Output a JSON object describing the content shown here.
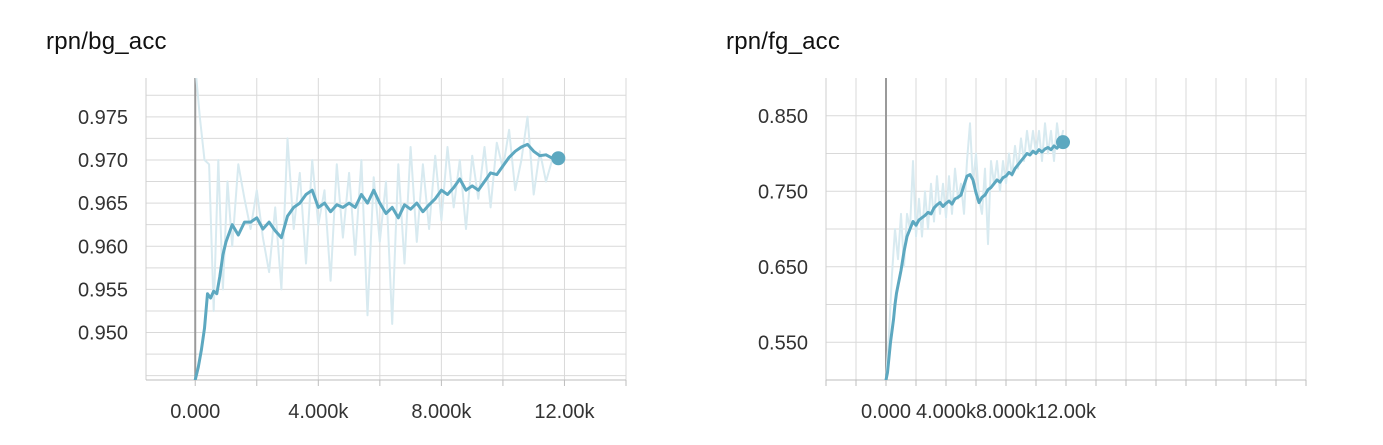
{
  "charts": [
    {
      "title": "rpn/bg_acc",
      "chart_data": {
        "type": "line",
        "title": "rpn/bg_acc",
        "xlabel": "",
        "ylabel": "",
        "xlim": [
          -1600,
          14000
        ],
        "ylim": [
          0.9445,
          0.9795
        ],
        "x_ticks": [
          0,
          4000,
          8000,
          12000
        ],
        "x_tick_labels": [
          "0.000",
          "4.000k",
          "8.000k",
          "12.00k"
        ],
        "y_ticks": [
          0.95,
          0.955,
          0.96,
          0.965,
          0.97,
          0.975
        ],
        "y_tick_labels": [
          "0.950",
          "0.955",
          "0.960",
          "0.965",
          "0.970",
          "0.975"
        ],
        "grid": true,
        "series": [
          {
            "role": "raw",
            "color": "#d8eaf0",
            "x": [
              0,
              150,
              300,
              450,
              600,
              750,
              900,
              1050,
              1200,
              1400,
              1600,
              1800,
              2000,
              2200,
              2400,
              2600,
              2800,
              3000,
              3200,
              3400,
              3600,
              3800,
              4000,
              4200,
              4400,
              4600,
              4800,
              5000,
              5200,
              5400,
              5600,
              5800,
              6000,
              6200,
              6400,
              6600,
              6800,
              7000,
              7200,
              7400,
              7600,
              7800,
              8000,
              8200,
              8400,
              8600,
              8800,
              9000,
              9200,
              9400,
              9600,
              9800,
              10000,
              10200,
              10400,
              10600,
              10800,
              11000,
              11200,
              11400,
              11600,
              11800
            ],
            "y": [
              0.981,
              0.975,
              0.97,
              0.9695,
              0.9525,
              0.97,
              0.955,
              0.9675,
              0.96,
              0.9695,
              0.9655,
              0.962,
              0.9665,
              0.961,
              0.957,
              0.9645,
              0.955,
              0.9725,
              0.962,
              0.9685,
              0.958,
              0.97,
              0.9625,
              0.9665,
              0.956,
              0.9695,
              0.961,
              0.9685,
              0.959,
              0.97,
              0.952,
              0.968,
              0.9605,
              0.9675,
              0.951,
              0.9695,
              0.958,
              0.9715,
              0.9605,
              0.9695,
              0.962,
              0.9705,
              0.963,
              0.9715,
              0.9645,
              0.97,
              0.962,
              0.9705,
              0.9655,
              0.9715,
              0.9645,
              0.972,
              0.969,
              0.9735,
              0.9665,
              0.97,
              0.975,
              0.966,
              0.971,
              0.9675,
              0.97,
              0.97
            ]
          },
          {
            "role": "smoothed",
            "color": "#5da8c0",
            "x": [
              0,
              100,
              200,
              300,
              400,
              500,
              600,
              700,
              800,
              900,
              1000,
              1200,
              1400,
              1600,
              1800,
              2000,
              2200,
              2400,
              2600,
              2800,
              3000,
              3200,
              3400,
              3600,
              3800,
              4000,
              4200,
              4400,
              4600,
              4800,
              5000,
              5200,
              5400,
              5600,
              5800,
              6000,
              6200,
              6400,
              6600,
              6800,
              7000,
              7200,
              7400,
              7600,
              7800,
              8000,
              8200,
              8400,
              8600,
              8800,
              9000,
              9200,
              9400,
              9600,
              9800,
              10000,
              10200,
              10400,
              10600,
              10800,
              11000,
              11200,
              11400,
              11600,
              11800
            ],
            "y": [
              0.9445,
              0.946,
              0.948,
              0.9505,
              0.9545,
              0.954,
              0.9548,
              0.9545,
              0.9565,
              0.959,
              0.9605,
              0.9625,
              0.9613,
              0.9628,
              0.9628,
              0.9633,
              0.962,
              0.9628,
              0.9618,
              0.961,
              0.9635,
              0.9645,
              0.965,
              0.966,
              0.9665,
              0.9645,
              0.965,
              0.964,
              0.9648,
              0.9645,
              0.965,
              0.9645,
              0.966,
              0.965,
              0.9665,
              0.965,
              0.9638,
              0.9645,
              0.9633,
              0.9648,
              0.9643,
              0.965,
              0.964,
              0.9648,
              0.9655,
              0.9665,
              0.966,
              0.9668,
              0.9678,
              0.9665,
              0.967,
              0.9665,
              0.9675,
              0.9685,
              0.9683,
              0.9693,
              0.9703,
              0.971,
              0.9715,
              0.9718,
              0.971,
              0.9705,
              0.9706,
              0.9702,
              0.9702
            ]
          }
        ]
      }
    },
    {
      "title": "rpn/fg_acc",
      "chart_data": {
        "type": "line",
        "title": "rpn/fg_acc",
        "xlabel": "",
        "ylabel": "",
        "xlim": [
          -4000,
          28000
        ],
        "ylim": [
          0.5,
          0.9
        ],
        "x_ticks": [
          0,
          4000,
          8000,
          12000
        ],
        "x_tick_labels": [
          "0.000",
          "4.000k",
          "8.000k",
          "12.00k"
        ],
        "y_ticks": [
          0.55,
          0.65,
          0.75,
          0.85
        ],
        "y_tick_labels": [
          "0.550",
          "0.650",
          "0.750",
          "0.850"
        ],
        "grid": true,
        "series": [
          {
            "role": "raw",
            "color": "#d8eaf0",
            "x": [
              0,
              200,
              400,
              600,
              800,
              1000,
              1200,
              1400,
              1600,
              1800,
              2000,
              2200,
              2400,
              2600,
              2800,
              3000,
              3200,
              3400,
              3600,
              3800,
              4000,
              4200,
              4400,
              4600,
              4800,
              5000,
              5200,
              5400,
              5600,
              5800,
              6000,
              6200,
              6400,
              6600,
              6800,
              7000,
              7200,
              7400,
              7600,
              7800,
              8000,
              8200,
              8400,
              8600,
              8800,
              9000,
              9200,
              9400,
              9600,
              9800,
              10000,
              10200,
              10400,
              10600,
              10800,
              11000,
              11200,
              11400,
              11600,
              11800
            ],
            "y": [
              0.5,
              0.56,
              0.64,
              0.7,
              0.66,
              0.72,
              0.65,
              0.72,
              0.7,
              0.79,
              0.69,
              0.74,
              0.69,
              0.75,
              0.7,
              0.76,
              0.71,
              0.77,
              0.72,
              0.76,
              0.715,
              0.77,
              0.72,
              0.78,
              0.74,
              0.76,
              0.72,
              0.79,
              0.84,
              0.76,
              0.8,
              0.74,
              0.72,
              0.78,
              0.68,
              0.79,
              0.76,
              0.79,
              0.75,
              0.79,
              0.76,
              0.8,
              0.77,
              0.81,
              0.78,
              0.82,
              0.79,
              0.83,
              0.8,
              0.83,
              0.8,
              0.83,
              0.79,
              0.84,
              0.8,
              0.83,
              0.79,
              0.84,
              0.81,
              0.83
            ]
          },
          {
            "role": "smoothed",
            "color": "#5da8c0",
            "x": [
              0,
              100,
              200,
              300,
              400,
              500,
              600,
              700,
              800,
              900,
              1000,
              1200,
              1400,
              1600,
              1800,
              2000,
              2200,
              2400,
              2600,
              2800,
              3000,
              3200,
              3400,
              3600,
              3800,
              4000,
              4200,
              4400,
              4600,
              4800,
              5000,
              5200,
              5400,
              5600,
              5800,
              6000,
              6200,
              6400,
              6600,
              6800,
              7000,
              7200,
              7400,
              7600,
              7800,
              8000,
              8200,
              8400,
              8600,
              8800,
              9000,
              9200,
              9400,
              9600,
              9800,
              10000,
              10200,
              10400,
              10600,
              10800,
              11000,
              11200,
              11400,
              11600,
              11800
            ],
            "y": [
              0.5,
              0.51,
              0.53,
              0.55,
              0.565,
              0.58,
              0.6,
              0.615,
              0.625,
              0.635,
              0.645,
              0.67,
              0.69,
              0.7,
              0.71,
              0.705,
              0.712,
              0.715,
              0.718,
              0.722,
              0.72,
              0.728,
              0.732,
              0.735,
              0.73,
              0.734,
              0.737,
              0.733,
              0.74,
              0.742,
              0.745,
              0.758,
              0.77,
              0.772,
              0.765,
              0.748,
              0.735,
              0.742,
              0.745,
              0.752,
              0.755,
              0.76,
              0.765,
              0.762,
              0.768,
              0.77,
              0.775,
              0.772,
              0.78,
              0.785,
              0.79,
              0.795,
              0.8,
              0.798,
              0.803,
              0.8,
              0.805,
              0.802,
              0.806,
              0.808,
              0.805,
              0.81,
              0.807,
              0.812,
              0.815
            ]
          }
        ]
      }
    }
  ]
}
